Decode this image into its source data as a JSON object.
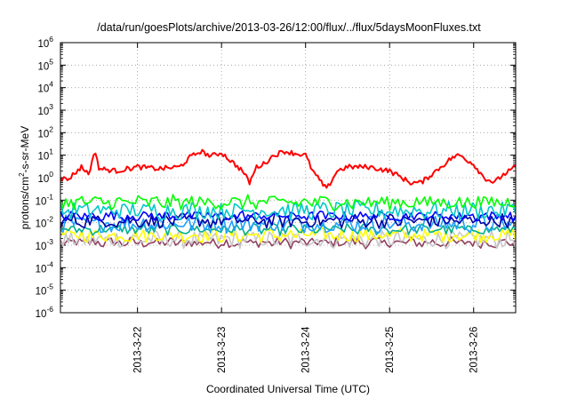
{
  "chart_data": {
    "type": "line",
    "title": "/data/run/goesPlots/archive/2013-03-26/12:00/flux/../flux/5daysMoonFluxes.txt",
    "xlabel": "Coordinated Universal Time (UTC)",
    "ylabel_parts": [
      "protons/cm",
      "2",
      "-s-sr-MeV"
    ],
    "y_scale": "log",
    "ylim_exponents": [
      -6,
      6
    ],
    "y_tick_exponents": [
      -6,
      -5,
      -4,
      -3,
      -2,
      -1,
      0,
      1,
      2,
      3,
      4,
      5,
      6
    ],
    "x_range_days": [
      "2013-3-21 02:00",
      "2013-3-26 12:00"
    ],
    "x_tick_labels": [
      "2013-3-22",
      "2013-3-23",
      "2013-3-24",
      "2013-3-25",
      "2013-3-26"
    ],
    "grid": true,
    "series": [
      {
        "color": "#ff0000",
        "typical_value": 3.0,
        "points": [
          [
            "2013-3-21 02:00",
            1.0
          ],
          [
            "2013-3-21 04:00",
            0.8
          ],
          [
            "2013-3-21 08:00",
            3.0
          ],
          [
            "2013-3-21 10:00",
            1.5
          ],
          [
            "2013-3-21 12:00",
            15
          ],
          [
            "2013-3-21 13:00",
            2.5
          ],
          [
            "2013-3-21 18:00",
            2.0
          ],
          [
            "2013-3-22 00:00",
            3.0
          ],
          [
            "2013-3-22 06:00",
            2.5
          ],
          [
            "2013-3-22 12:00",
            3.0
          ],
          [
            "2013-3-22 15:00",
            8
          ],
          [
            "2013-3-22 18:00",
            15
          ],
          [
            "2013-3-22 21:00",
            9
          ],
          [
            "2013-3-23 00:00",
            13
          ],
          [
            "2013-3-23 03:00",
            5
          ],
          [
            "2013-3-23 06:00",
            2
          ],
          [
            "2013-3-23 08:00",
            0.6
          ],
          [
            "2013-3-23 10:00",
            3
          ],
          [
            "2013-3-23 12:00",
            4
          ],
          [
            "2013-3-23 15:00",
            10
          ],
          [
            "2013-3-23 18:00",
            15
          ],
          [
            "2013-3-23 21:00",
            12
          ],
          [
            "2013-3-24 00:00",
            10
          ],
          [
            "2013-3-24 02:00",
            2
          ],
          [
            "2013-3-24 06:00",
            0.3
          ],
          [
            "2013-3-24 09:00",
            2
          ],
          [
            "2013-3-24 12:00",
            3
          ],
          [
            "2013-3-24 18:00",
            3
          ],
          [
            "2013-3-25 00:00",
            2
          ],
          [
            "2013-3-25 06:00",
            0.6
          ],
          [
            "2013-3-25 09:00",
            0.6
          ],
          [
            "2013-3-25 14:00",
            2.5
          ],
          [
            "2013-3-25 18:00",
            8
          ],
          [
            "2013-3-25 20:00",
            10
          ],
          [
            "2013-3-26 00:00",
            4
          ],
          [
            "2013-3-26 03:00",
            1
          ],
          [
            "2013-3-26 06:00",
            0.6
          ],
          [
            "2013-3-26 08:00",
            1.2
          ],
          [
            "2013-3-26 12:00",
            3.0
          ]
        ]
      },
      {
        "color": "#00ff00",
        "typical_value": 0.08
      },
      {
        "color": "#00c8c8",
        "typical_value": 0.035
      },
      {
        "color": "#0000ff",
        "typical_value": 0.02
      },
      {
        "color": "#0000a0",
        "typical_value": 0.012
      },
      {
        "color": "#20a0ff",
        "typical_value": 0.009
      },
      {
        "color": "#00b090",
        "typical_value": 0.005
      },
      {
        "color": "#ffff00",
        "typical_value": 0.0028
      },
      {
        "color": "#c8c8c8",
        "typical_value": 0.0018
      },
      {
        "color": "#904060",
        "typical_value": 0.0013
      }
    ]
  }
}
